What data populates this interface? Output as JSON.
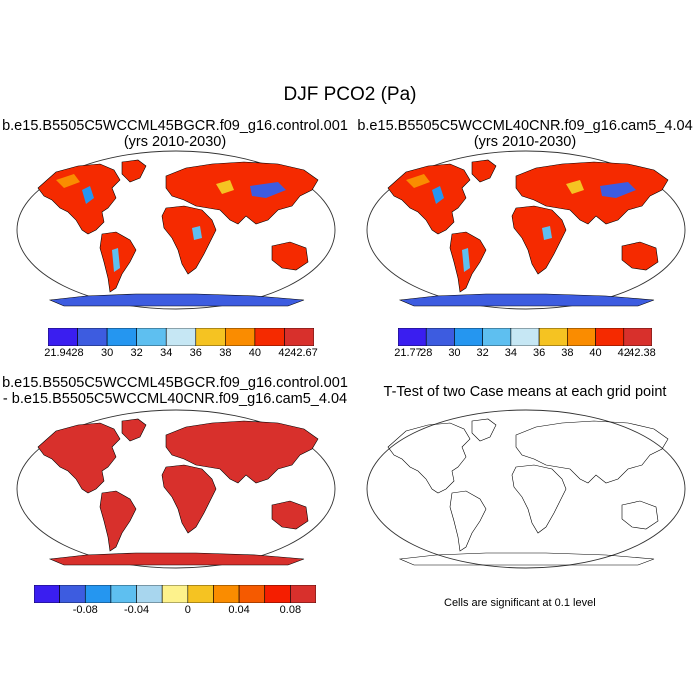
{
  "figure": {
    "title": "DJF PCO2 (Pa)"
  },
  "panels": [
    {
      "id": "case1",
      "title_lines": [
        "b.e15.B5505C5WCCML45BGCR.f09_g16.control.001",
        "(yrs 2010-2030)"
      ],
      "colorbar": {
        "colors": [
          "#3a1ef0",
          "#3d5ce0",
          "#2596f0",
          "#5ebff0",
          "#c6e7f4",
          "#f5c322",
          "#fa8c00",
          "#f52a00",
          "#d8302c"
        ],
        "labels": [
          "21.94",
          "28",
          "30",
          "32",
          "34",
          "36",
          "38",
          "40",
          "42",
          "42.67"
        ]
      }
    },
    {
      "id": "case2",
      "title_lines": [
        "b.e15.B5505C5WCCML40CNR.f09_g16.cam5_4.04",
        "(yrs 2010-2030)"
      ],
      "colorbar": {
        "colors": [
          "#3a1ef0",
          "#3d5ce0",
          "#2596f0",
          "#5ebff0",
          "#c6e7f4",
          "#f5c322",
          "#fa8c00",
          "#f52a00",
          "#d8302c"
        ],
        "labels": [
          "21.77",
          "28",
          "30",
          "32",
          "34",
          "36",
          "38",
          "40",
          "42",
          "42.38"
        ]
      }
    },
    {
      "id": "difference",
      "title_lines": [
        "b.e15.B5505C5WCCML45BGCR.f09_g16.control.001",
        "- b.e15.B5505C5WCCML40CNR.f09_g16.cam5_4.04"
      ],
      "colorbar": {
        "colors": [
          "#3a1ef0",
          "#3d5ce0",
          "#2596f0",
          "#5ebff0",
          "#a8d6ee",
          "#fdf28c",
          "#f5c322",
          "#fa8c00",
          "#f55a00",
          "#f51e00",
          "#d8302c"
        ],
        "labels": [
          "-0.08",
          "-0.04",
          "0",
          "0.04",
          "0.08"
        ]
      }
    },
    {
      "id": "ttest",
      "title_lines": [
        "T-Test of two Case means at each grid point"
      ],
      "note": "Cells are significant at 0.1 level"
    }
  ],
  "legend_colors": {
    "land_fill_default": "#f52a00",
    "land_fill_difference": "#d8302c",
    "antarctica_blue": "#3d5ce0",
    "outline": "#000000"
  }
}
